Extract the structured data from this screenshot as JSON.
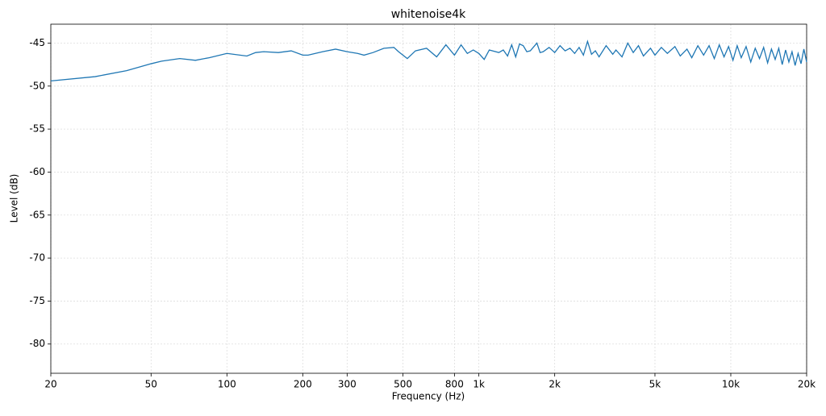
{
  "chart_data": {
    "type": "line",
    "title": "whitenoise4k",
    "x_label": "Frequency (Hz)",
    "y_label": "Level (dB)",
    "x_scale": "log",
    "grid": true,
    "xlim": [
      20,
      20000
    ],
    "ylim": [
      -83.4,
      -42.8
    ],
    "xticks": [
      20,
      50,
      100,
      200,
      300,
      500,
      800,
      {
        "value": 1000,
        "label": "1k"
      },
      {
        "value": 2000,
        "label": "2k"
      },
      {
        "value": 5000,
        "label": "5k"
      },
      {
        "value": 10000,
        "label": "10k"
      },
      {
        "value": 20000,
        "label": "20k"
      }
    ],
    "yticks": [
      -45,
      -50,
      -55,
      -60,
      -65,
      -70,
      -75,
      -80
    ],
    "series": [
      {
        "color": "#1f77b4",
        "x": [
          20,
          30,
          40,
          50,
          55,
          65,
          75,
          85,
          100,
          120,
          130,
          140,
          160,
          180,
          200,
          210,
          240,
          270,
          300,
          330,
          350,
          380,
          420,
          460,
          480,
          520,
          560,
          620,
          680,
          740,
          800,
          850,
          900,
          950,
          1000,
          1050,
          1100,
          1200,
          1250,
          1300,
          1350,
          1400,
          1450,
          1500,
          1550,
          1600,
          1700,
          1750,
          1800,
          1900,
          2000,
          2100,
          2200,
          2300,
          2400,
          2500,
          2600,
          2700,
          2800,
          2900,
          3000,
          3200,
          3400,
          3500,
          3700,
          3900,
          4100,
          4300,
          4500,
          4800,
          5000,
          5300,
          5600,
          6000,
          6300,
          6700,
          7000,
          7400,
          7800,
          8200,
          8600,
          9000,
          9400,
          9800,
          10200,
          10600,
          11000,
          11500,
          12000,
          12500,
          13000,
          13500,
          14000,
          14500,
          15000,
          15500,
          16000,
          16500,
          17000,
          17500,
          18000,
          18500,
          19000,
          19500,
          20000
        ],
        "values": [
          -49.4,
          -48.9,
          -48.2,
          -47.4,
          -47.1,
          -46.8,
          -47.0,
          -46.7,
          -46.2,
          -46.5,
          -46.1,
          -46.0,
          -46.1,
          -45.9,
          -46.4,
          -46.4,
          -46.0,
          -45.7,
          -46.0,
          -46.2,
          -46.4,
          -46.1,
          -45.6,
          -45.5,
          -46.0,
          -46.8,
          -45.9,
          -45.6,
          -46.6,
          -45.2,
          -46.4,
          -45.2,
          -46.2,
          -45.8,
          -46.2,
          -46.9,
          -45.8,
          -46.1,
          -45.8,
          -46.5,
          -45.2,
          -46.6,
          -45.1,
          -45.3,
          -46.0,
          -45.9,
          -45.0,
          -46.1,
          -46.0,
          -45.5,
          -46.1,
          -45.3,
          -45.9,
          -45.6,
          -46.2,
          -45.5,
          -46.4,
          -44.8,
          -46.3,
          -45.9,
          -46.6,
          -45.3,
          -46.3,
          -45.8,
          -46.6,
          -45.0,
          -46.1,
          -45.3,
          -46.5,
          -45.6,
          -46.4,
          -45.5,
          -46.2,
          -45.4,
          -46.5,
          -45.7,
          -46.7,
          -45.3,
          -46.4,
          -45.3,
          -46.8,
          -45.2,
          -46.6,
          -45.4,
          -47.0,
          -45.3,
          -46.7,
          -45.4,
          -47.2,
          -45.6,
          -46.8,
          -45.5,
          -47.3,
          -45.7,
          -46.9,
          -45.6,
          -47.5,
          -45.8,
          -47.2,
          -46.0,
          -47.6,
          -46.2,
          -47.4,
          -45.7,
          -47.2
        ]
      }
    ]
  }
}
